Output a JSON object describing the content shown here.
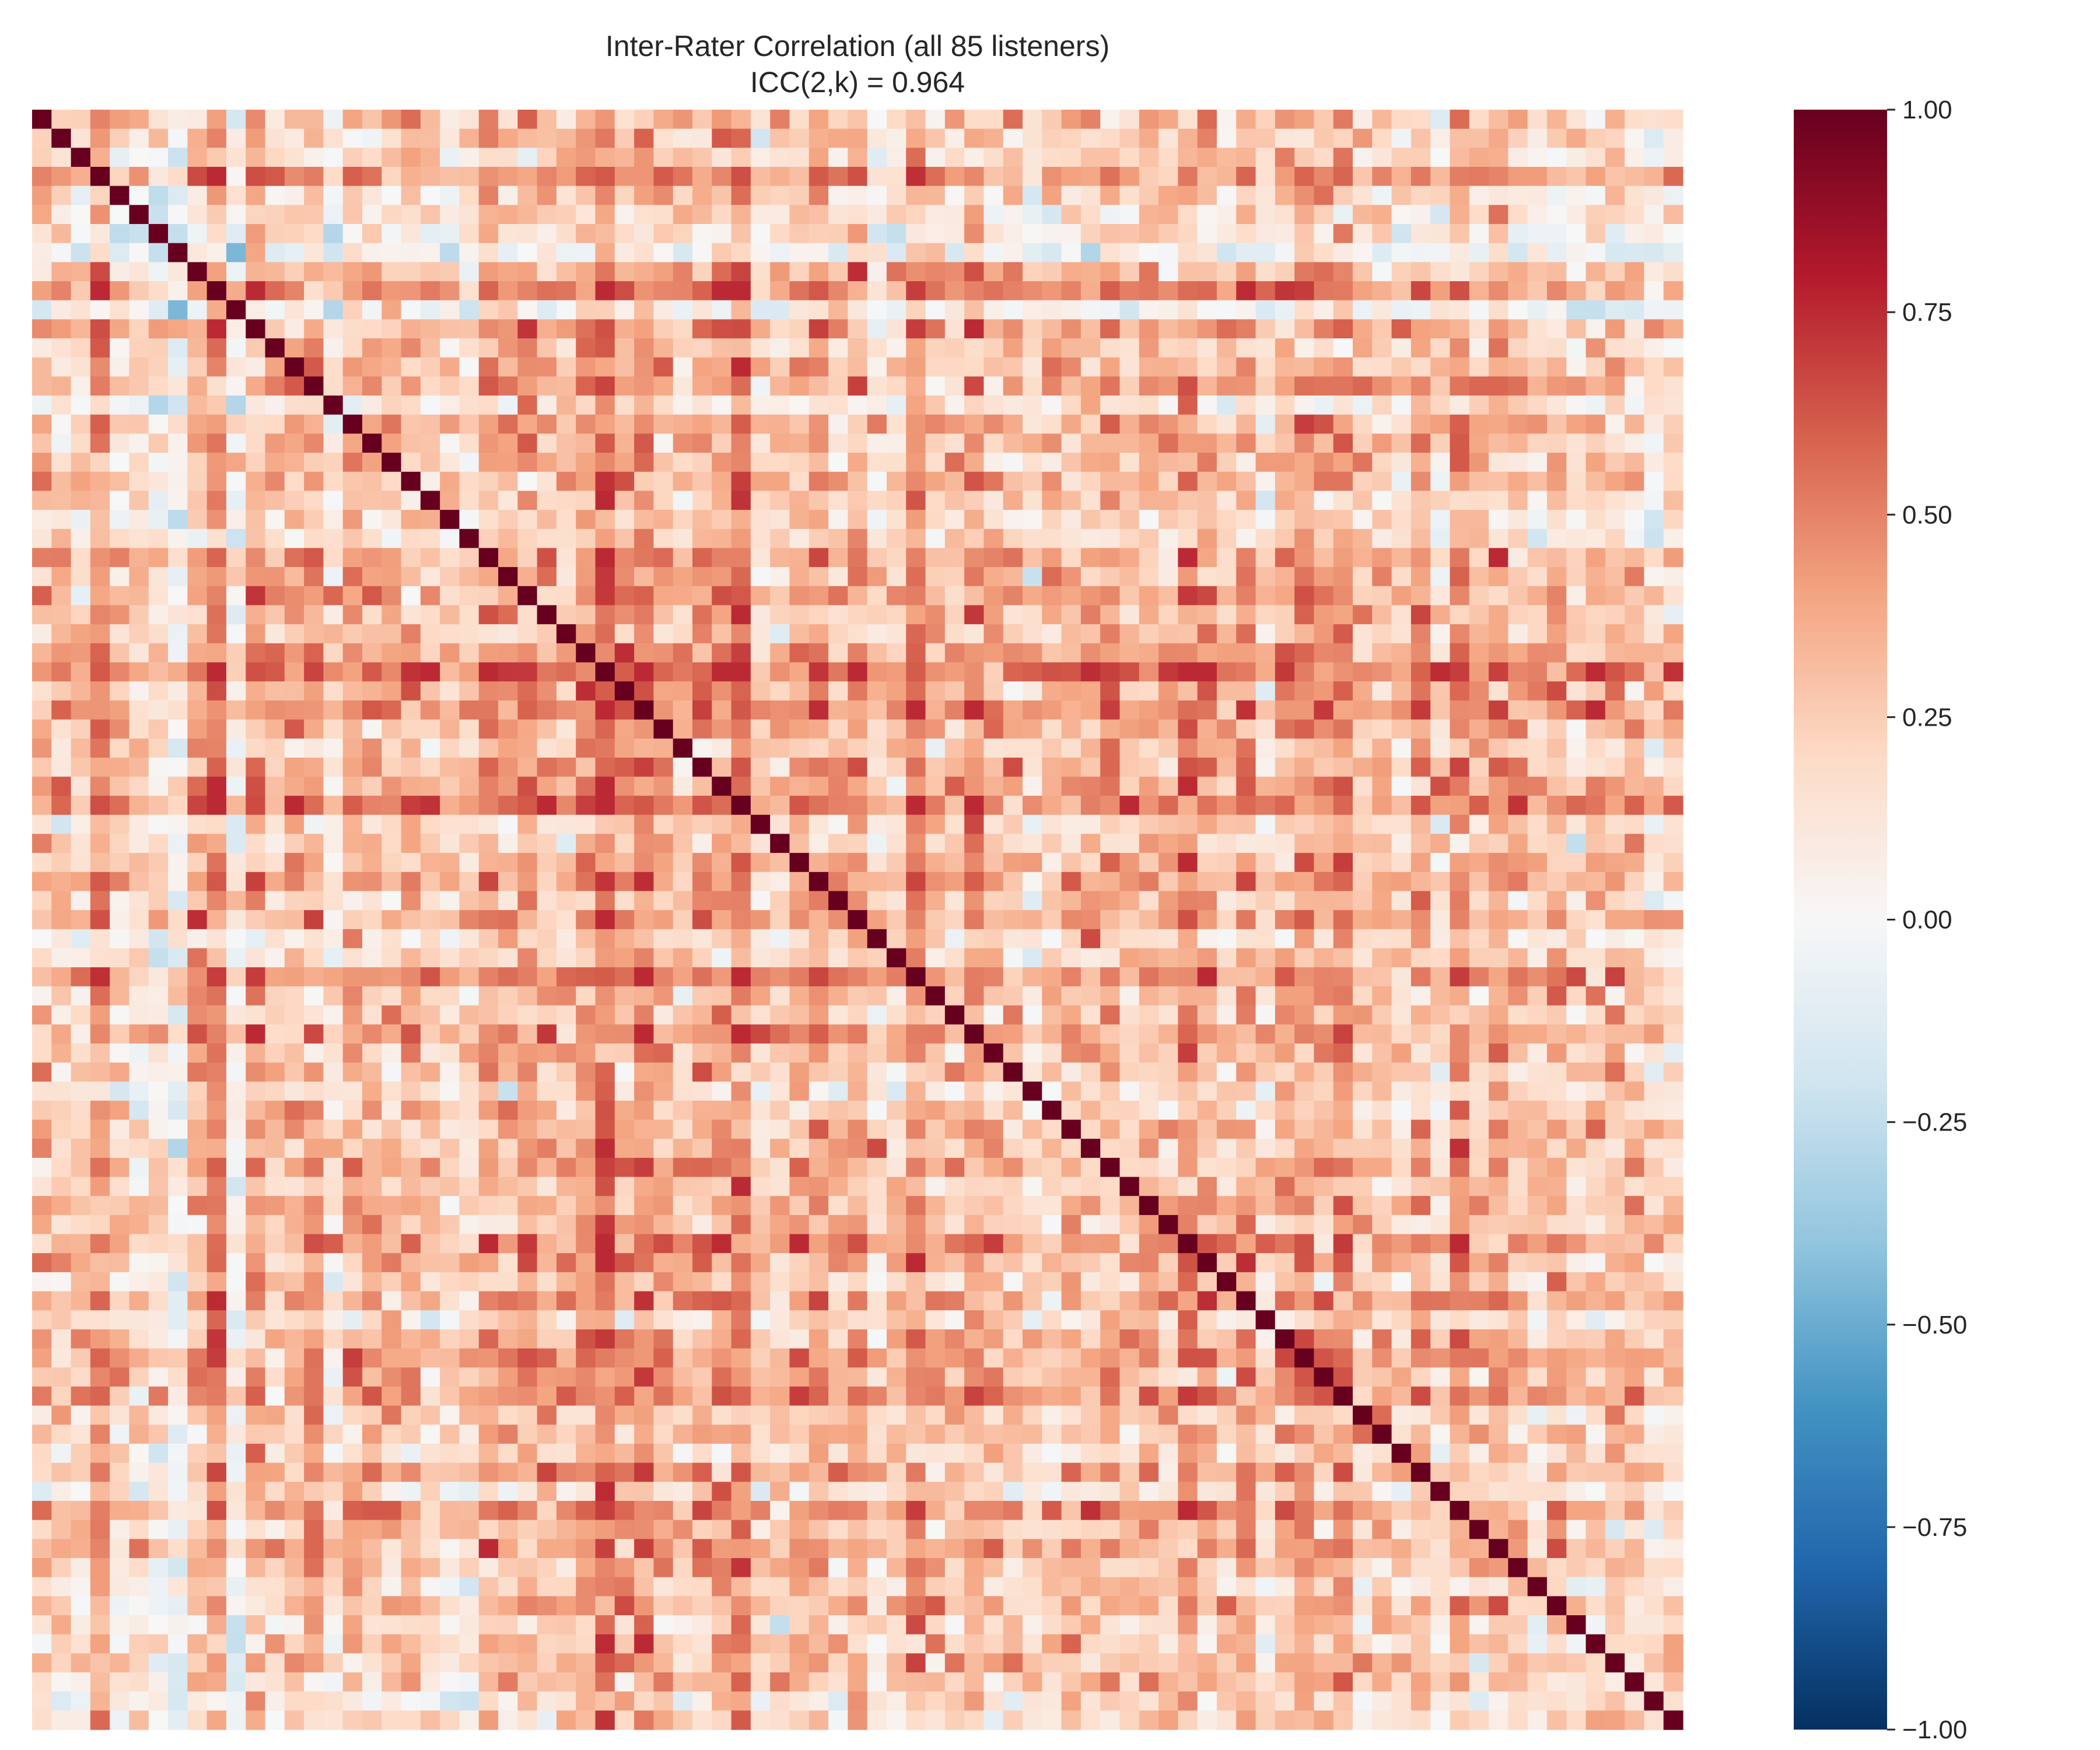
{
  "chart_data": {
    "type": "heatmap",
    "title": "Inter-Rater Correlation (all 85 listeners)",
    "subtitle": "ICC(2,k) = 0.964",
    "n": 85,
    "icc_2k": 0.964,
    "xlabel": "",
    "ylabel": "",
    "x_tick_labels": [],
    "y_tick_labels": [],
    "diagonal_value": 1.0,
    "off_diagonal_mean": 0.3,
    "off_diagonal_range": [
      -0.5,
      0.75
    ],
    "colormap": "RdBu_r",
    "vmin": -1.0,
    "vmax": 1.0,
    "colorbar": {
      "ticks": [
        1.0,
        0.75,
        0.5,
        0.25,
        0.0,
        -0.25,
        -0.5,
        -0.75,
        -1.0
      ],
      "tick_labels": [
        "1.00",
        "0.75",
        "0.50",
        "0.25",
        "0.00",
        "−0.25",
        "−0.50",
        "−0.75",
        "−1.00"
      ]
    },
    "colormap_stops": [
      "#053061",
      "#2166ac",
      "#4393c3",
      "#92c5de",
      "#d1e5f0",
      "#f7f7f7",
      "#fddbc7",
      "#f4a582",
      "#d6604d",
      "#b2182b",
      "#67001f"
    ]
  }
}
